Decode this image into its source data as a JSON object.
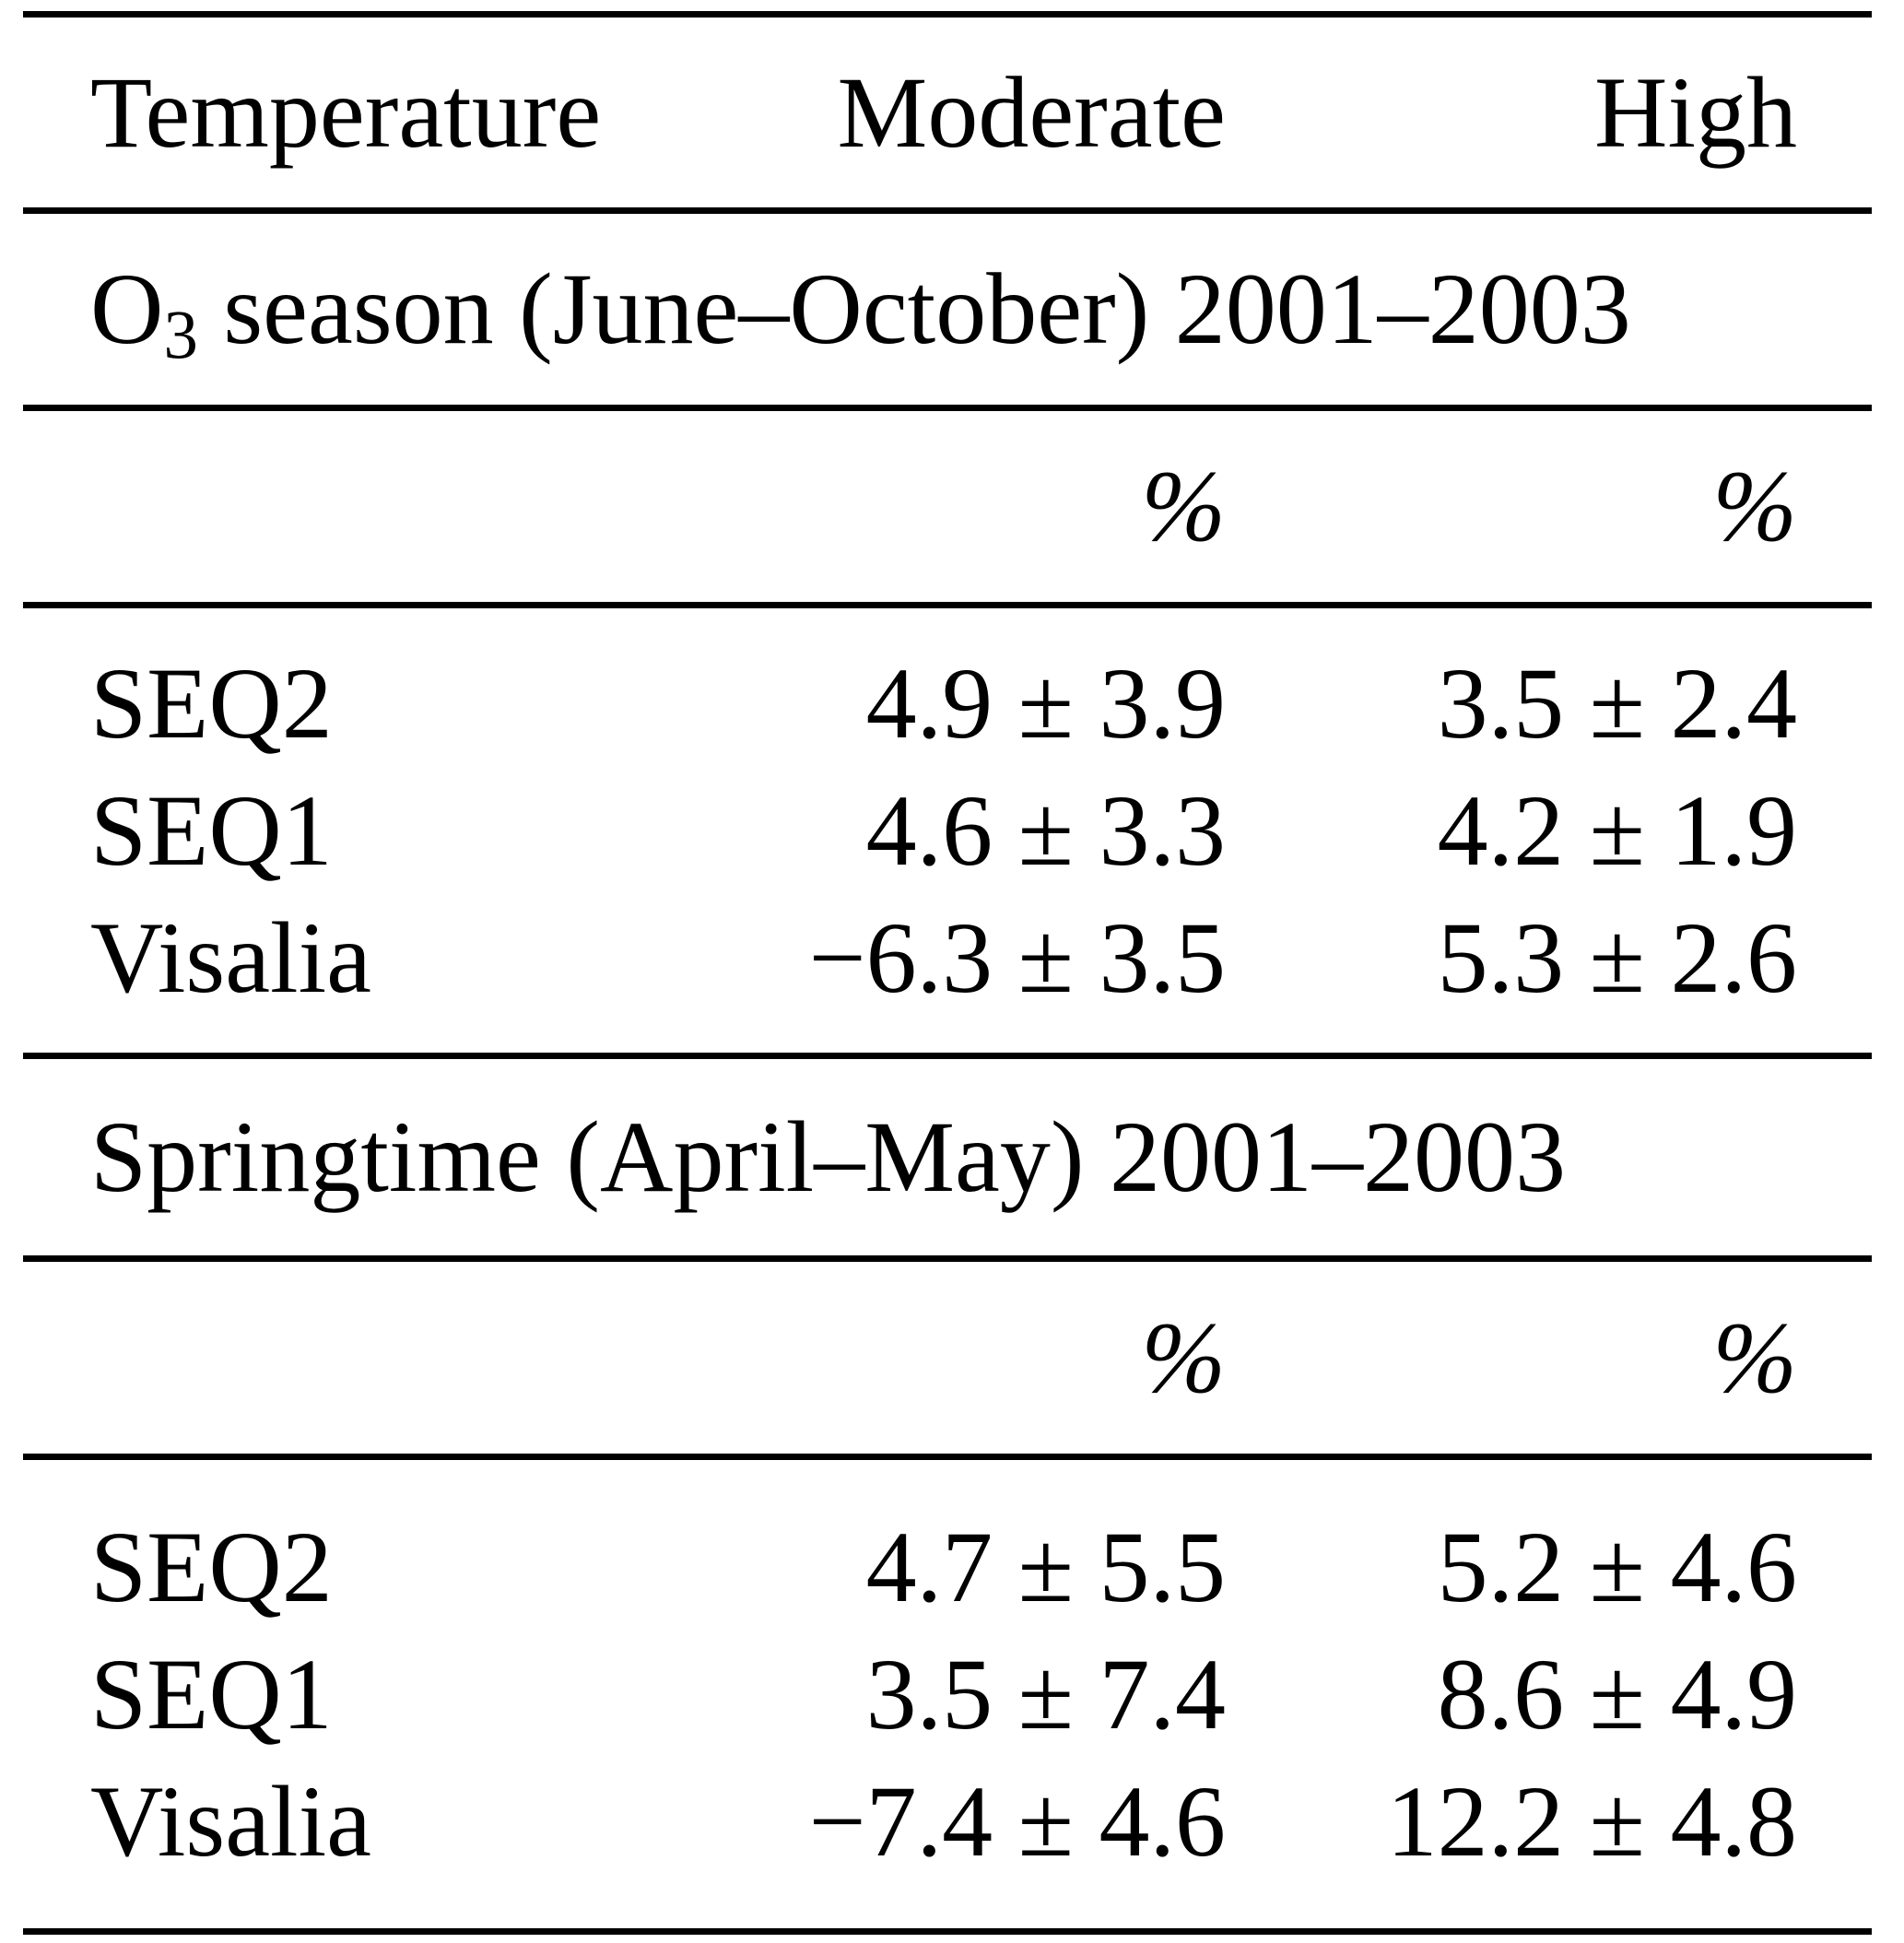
{
  "table": {
    "columns": {
      "col1": "Temperature",
      "col2": "Moderate",
      "col3": "High"
    },
    "sections": [
      {
        "title": {
          "base": "O",
          "sub": "3",
          "rest": " season (June–October) 2001–2003"
        },
        "units": {
          "col2": "%",
          "col3": "%"
        },
        "rows": [
          {
            "label": "SEQ2",
            "moderate": "4.9 ± 3.9",
            "high": "3.5 ± 2.4"
          },
          {
            "label": "SEQ1",
            "moderate": "4.6 ± 3.3",
            "high": "4.2 ± 1.9"
          },
          {
            "label": "Visalia",
            "moderate": "−6.3 ± 3.5",
            "high": "5.3 ± 2.6"
          }
        ]
      },
      {
        "title": {
          "base": "Springtime (April–May) 2001–2003",
          "sub": "",
          "rest": ""
        },
        "units": {
          "col2": "%",
          "col3": "%"
        },
        "rows": [
          {
            "label": "SEQ2",
            "moderate": "4.7 ± 5.5",
            "high": "5.2 ± 4.6"
          },
          {
            "label": "SEQ1",
            "moderate": "3.5 ± 7.4",
            "high": "8.6 ± 4.9"
          },
          {
            "label": "Visalia",
            "moderate": "−7.4 ± 4.6",
            "high": "12.2 ± 4.8"
          }
        ]
      }
    ]
  }
}
